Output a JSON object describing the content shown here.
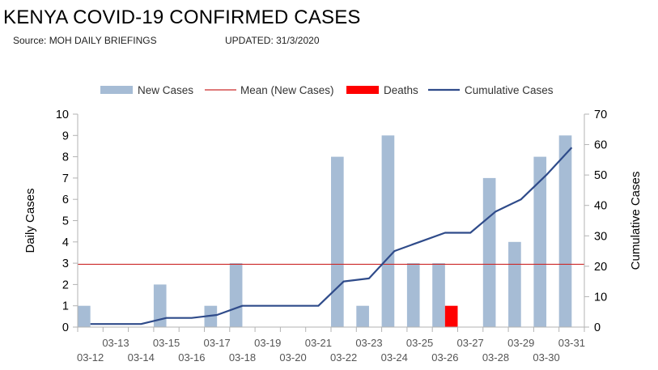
{
  "header": {
    "title": "KENYA COVID-19 CONFIRMED CASES",
    "source": "Source: MOH DAILY BRIEFINGS",
    "updated": "UPDATED: 31/3/2020"
  },
  "colors": {
    "new_cases": "#a6bcd5",
    "mean": "#cc2a2a",
    "deaths": "#ff0000",
    "cumulative": "#2f4b8a",
    "tick_label": "#555555"
  },
  "chart_data": {
    "type": "bar",
    "title": "KENYA COVID-19 CONFIRMED CASES",
    "ylabel": "Daily Cases",
    "y2label": "Cumulative Cases",
    "ylim": [
      0,
      10
    ],
    "y2lim": [
      0,
      70
    ],
    "yticks": [
      0,
      1,
      2,
      3,
      4,
      5,
      6,
      7,
      8,
      9,
      10
    ],
    "y2ticks": [
      0,
      10,
      20,
      30,
      40,
      50,
      60,
      70
    ],
    "grid": false,
    "legend_position": "top-center",
    "categories": [
      "03-12",
      "03-13",
      "03-14",
      "03-15",
      "03-16",
      "03-17",
      "03-18",
      "03-19",
      "03-20",
      "03-21",
      "03-22",
      "03-23",
      "03-24",
      "03-25",
      "03-26",
      "03-27",
      "03-28",
      "03-29",
      "03-30",
      "03-31"
    ],
    "series": [
      {
        "name": "New Cases",
        "kind": "bar",
        "axis": "left",
        "values": [
          1,
          0,
          0,
          2,
          0,
          1,
          3,
          0,
          0,
          0,
          8,
          1,
          9,
          3,
          3,
          0,
          7,
          4,
          8,
          9
        ]
      },
      {
        "name": "Mean (New Cases)",
        "kind": "hline",
        "axis": "left",
        "value": 2.95
      },
      {
        "name": "Deaths",
        "kind": "bar",
        "axis": "left",
        "values": [
          0,
          0,
          0,
          0,
          0,
          0,
          0,
          0,
          0,
          0,
          0,
          0,
          0,
          0,
          1,
          0,
          0,
          0,
          0,
          0
        ]
      },
      {
        "name": "Cumulative Cases",
        "kind": "line",
        "axis": "right",
        "values": [
          1,
          1,
          1,
          3,
          3,
          4,
          7,
          7,
          7,
          7,
          15,
          16,
          25,
          28,
          31,
          31,
          38,
          42,
          50,
          59
        ]
      }
    ]
  }
}
